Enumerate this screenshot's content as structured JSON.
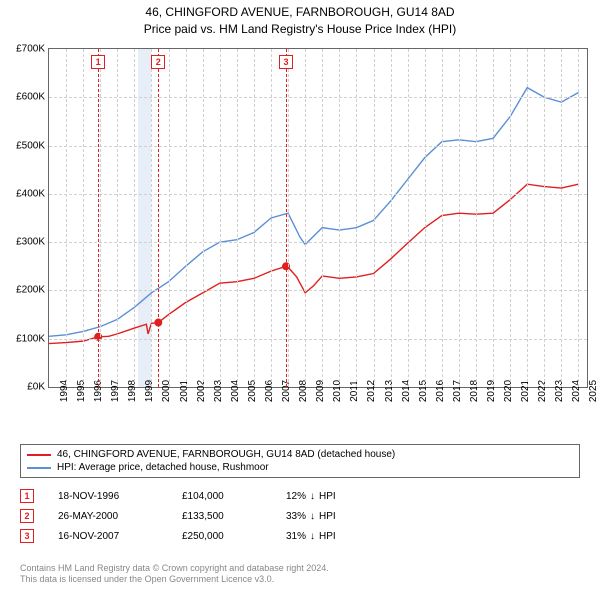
{
  "title": {
    "line1": "46, CHINGFORD AVENUE, FARNBOROUGH, GU14 8AD",
    "line2": "Price paid vs. HM Land Registry's House Price Index (HPI)"
  },
  "chart": {
    "type": "line",
    "background_color": "#ffffff",
    "grid_color": "#d0d0d0",
    "border_color": "#666666",
    "xlim": [
      1994,
      2025.5
    ],
    "ylim": [
      0,
      700000
    ],
    "ytick_step": 100000,
    "ytick_labels": [
      "£0K",
      "£100K",
      "£200K",
      "£300K",
      "£400K",
      "£500K",
      "£600K",
      "£700K"
    ],
    "xtick_step": 1,
    "xtick_labels": [
      "1994",
      "1995",
      "1996",
      "1997",
      "1998",
      "1999",
      "2000",
      "2001",
      "2002",
      "2003",
      "2004",
      "2005",
      "2006",
      "2007",
      "2008",
      "2009",
      "2010",
      "2011",
      "2012",
      "2013",
      "2014",
      "2015",
      "2016",
      "2017",
      "2018",
      "2019",
      "2020",
      "2021",
      "2022",
      "2023",
      "2024",
      "2025"
    ],
    "x_label_rotation": -90,
    "label_fontsize": 10,
    "line_width": 1.4,
    "series": [
      {
        "name": "red",
        "color": "#e02020",
        "label": "46, CHINGFORD AVENUE, FARNBOROUGH, GU14 8AD (detached house)",
        "points": [
          [
            1994,
            90000
          ],
          [
            1995,
            92000
          ],
          [
            1996,
            95000
          ],
          [
            1996.88,
            104000
          ],
          [
            1997.5,
            105000
          ],
          [
            1998,
            110000
          ],
          [
            1999,
            122000
          ],
          [
            1999.7,
            130000
          ],
          [
            1999.8,
            110000
          ],
          [
            2000,
            132000
          ],
          [
            2000.4,
            133500
          ],
          [
            2001,
            150000
          ],
          [
            2002,
            175000
          ],
          [
            2003,
            195000
          ],
          [
            2004,
            215000
          ],
          [
            2005,
            218000
          ],
          [
            2006,
            225000
          ],
          [
            2007,
            240000
          ],
          [
            2007.88,
            250000
          ],
          [
            2008,
            248000
          ],
          [
            2008.5,
            228000
          ],
          [
            2009,
            195000
          ],
          [
            2009.5,
            210000
          ],
          [
            2010,
            230000
          ],
          [
            2011,
            225000
          ],
          [
            2012,
            228000
          ],
          [
            2013,
            235000
          ],
          [
            2014,
            265000
          ],
          [
            2015,
            298000
          ],
          [
            2016,
            330000
          ],
          [
            2017,
            355000
          ],
          [
            2018,
            360000
          ],
          [
            2019,
            358000
          ],
          [
            2020,
            360000
          ],
          [
            2021,
            388000
          ],
          [
            2022,
            420000
          ],
          [
            2023,
            415000
          ],
          [
            2024,
            412000
          ],
          [
            2025,
            420000
          ]
        ],
        "markers": [
          {
            "x": 1996.88,
            "y": 104000,
            "label": "1"
          },
          {
            "x": 2000.4,
            "y": 133500,
            "label": "2"
          },
          {
            "x": 2007.88,
            "y": 250000,
            "label": "3"
          }
        ]
      },
      {
        "name": "blue",
        "color": "#5b8fd6",
        "label": "HPI: Average price, detached house, Rushmoor",
        "points": [
          [
            1994,
            105000
          ],
          [
            1995,
            108000
          ],
          [
            1996,
            115000
          ],
          [
            1997,
            125000
          ],
          [
            1998,
            140000
          ],
          [
            1999,
            165000
          ],
          [
            2000,
            195000
          ],
          [
            2001,
            218000
          ],
          [
            2002,
            250000
          ],
          [
            2003,
            280000
          ],
          [
            2004,
            300000
          ],
          [
            2005,
            305000
          ],
          [
            2006,
            320000
          ],
          [
            2007,
            350000
          ],
          [
            2008,
            360000
          ],
          [
            2008.7,
            310000
          ],
          [
            2009,
            295000
          ],
          [
            2010,
            330000
          ],
          [
            2011,
            325000
          ],
          [
            2012,
            330000
          ],
          [
            2013,
            345000
          ],
          [
            2014,
            385000
          ],
          [
            2015,
            430000
          ],
          [
            2016,
            475000
          ],
          [
            2017,
            508000
          ],
          [
            2018,
            512000
          ],
          [
            2019,
            508000
          ],
          [
            2020,
            515000
          ],
          [
            2021,
            560000
          ],
          [
            2022,
            620000
          ],
          [
            2023,
            600000
          ],
          [
            2024,
            590000
          ],
          [
            2025,
            610000
          ]
        ]
      }
    ],
    "range_bands": [
      {
        "x0": 1999.2,
        "x1": 2000.0,
        "color": "#e8eef8"
      }
    ]
  },
  "legend": {
    "items": [
      {
        "color": "#e02020",
        "label": "46, CHINGFORD AVENUE, FARNBOROUGH, GU14 8AD (detached house)"
      },
      {
        "color": "#5b8fd6",
        "label": "HPI: Average price, detached house, Rushmoor"
      }
    ]
  },
  "marker_table": {
    "rows": [
      {
        "num": "1",
        "date": "18-NOV-1996",
        "price": "£104,000",
        "diff": "12%",
        "vs": "HPI"
      },
      {
        "num": "2",
        "date": "26-MAY-2000",
        "price": "£133,500",
        "diff": "33%",
        "vs": "HPI"
      },
      {
        "num": "3",
        "date": "16-NOV-2007",
        "price": "£250,000",
        "diff": "31%",
        "vs": "HPI"
      }
    ],
    "arrow": "↓",
    "marker_border_color": "#e02020"
  },
  "footer": {
    "line1": "Contains HM Land Registry data © Crown copyright and database right 2024.",
    "line2": "This data is licensed under the Open Government Licence v3.0."
  }
}
